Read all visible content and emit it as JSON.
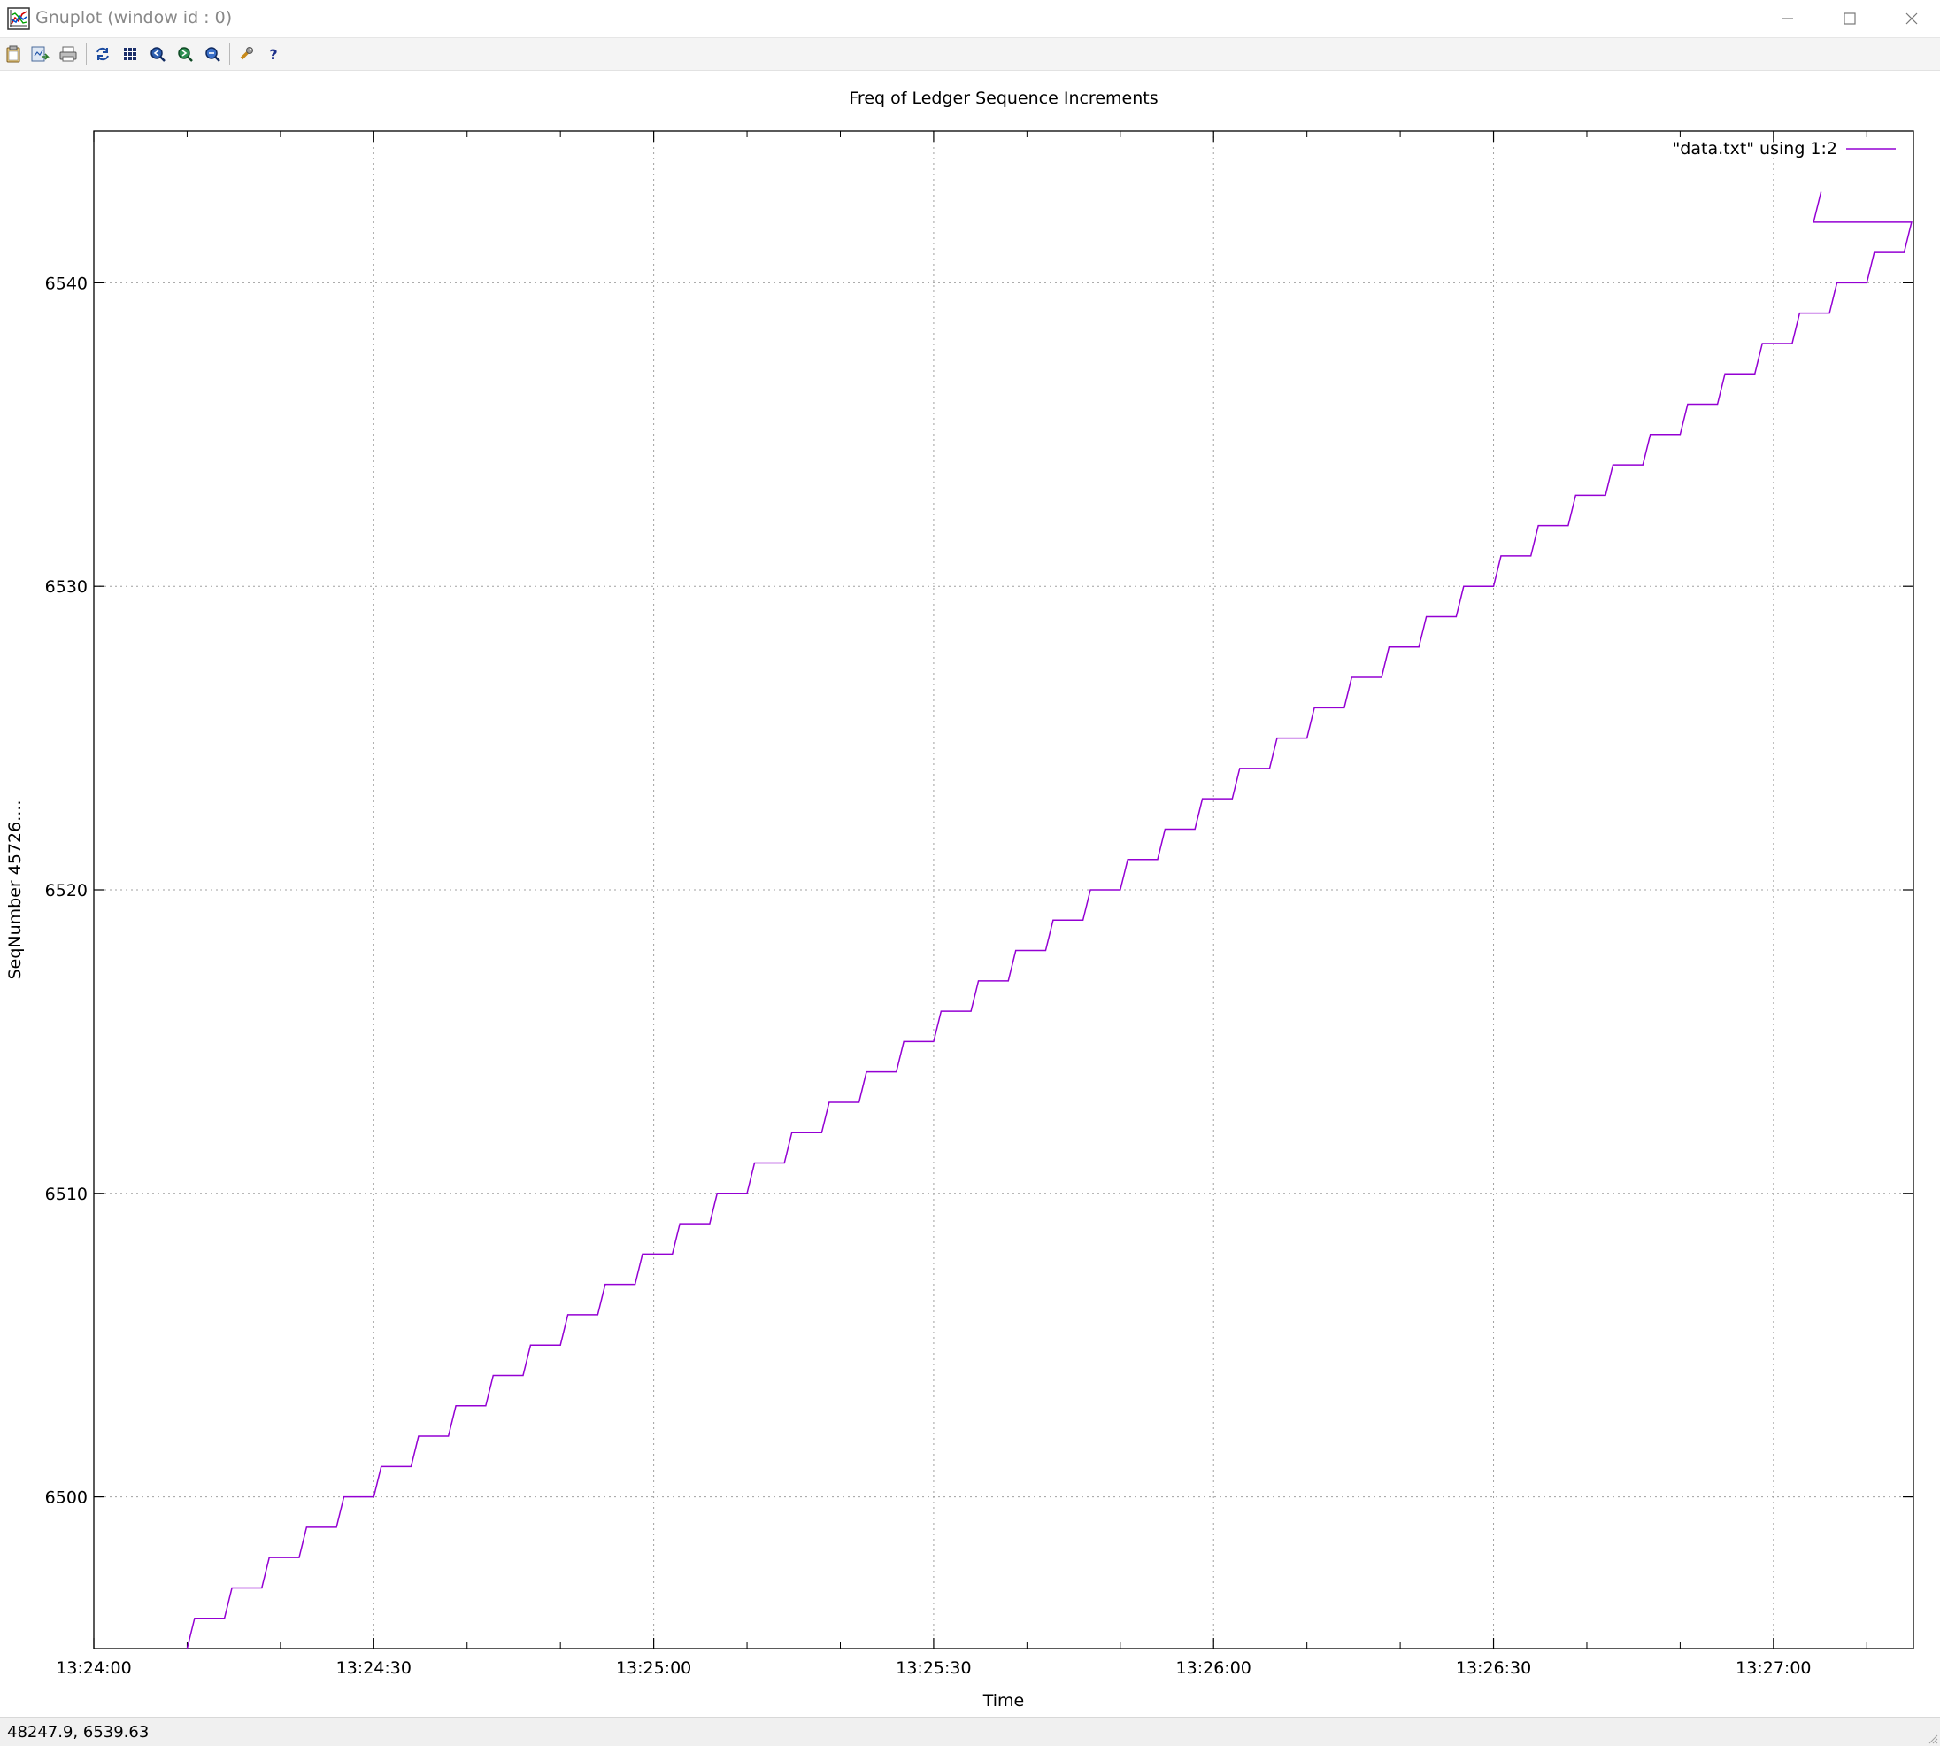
{
  "window": {
    "title": "Gnuplot (window id : 0)",
    "controls": [
      "minimize",
      "maximize",
      "close"
    ]
  },
  "toolbar": {
    "buttons": [
      {
        "name": "copy-clipboard-button",
        "icon": "clipboard-icon"
      },
      {
        "name": "export-button",
        "icon": "export-icon"
      },
      {
        "name": "print-button",
        "icon": "printer-icon"
      },
      {
        "name": "replot-button",
        "icon": "refresh-icon"
      },
      {
        "name": "grid-button",
        "icon": "grid-icon"
      },
      {
        "name": "zoom-previous-button",
        "icon": "zoom-previous-icon"
      },
      {
        "name": "zoom-next-button",
        "icon": "zoom-next-icon"
      },
      {
        "name": "unzoom-button",
        "icon": "unzoom-icon"
      },
      {
        "name": "options-button",
        "icon": "wrench-icon"
      },
      {
        "name": "help-button",
        "icon": "help-icon"
      }
    ]
  },
  "status": {
    "coordinates": "48247.9,  6539.63"
  },
  "colors": {
    "series": "#9400d3",
    "grid": "#a0a0a0",
    "axis": "#000000"
  },
  "chart_data": {
    "type": "line",
    "title": "Freq of Ledger Sequence Increments",
    "xlabel": "Time",
    "ylabel": "SeqNumber 45726....",
    "xlim": [
      0,
      195
    ],
    "ylim": [
      6495,
      6545
    ],
    "x_ticks": [
      {
        "value": 0,
        "label": "13:24:00"
      },
      {
        "value": 30,
        "label": "13:24:30"
      },
      {
        "value": 60,
        "label": "13:25:00"
      },
      {
        "value": 90,
        "label": "13:25:30"
      },
      {
        "value": 120,
        "label": "13:26:00"
      },
      {
        "value": 150,
        "label": "13:26:30"
      },
      {
        "value": 180,
        "label": "13:27:00"
      }
    ],
    "x_minor_tick_step": 10,
    "y_ticks": [
      6500,
      6510,
      6520,
      6530,
      6540
    ],
    "grid": true,
    "legend": {
      "position": "top-right",
      "entries": [
        "\"data.txt\" using 1:2"
      ]
    },
    "series": [
      {
        "name": "\"data.txt\" using 1:2",
        "step": {
          "start_x": 10,
          "start_y": 6495,
          "end_y": 6542,
          "y_step": 1,
          "step_period_s": 4.0,
          "flat_s": 3.2,
          "final_x": 185.1,
          "final_y": 6543
        }
      }
    ]
  }
}
